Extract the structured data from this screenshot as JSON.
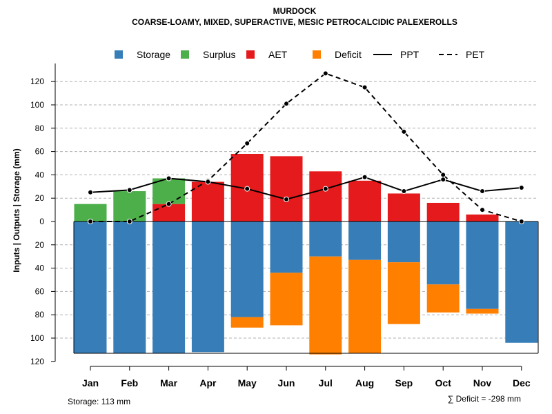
{
  "chart_data": {
    "type": "bar",
    "title": "MURDOCK",
    "subtitle": "COARSE-LOAMY, MIXED, SUPERACTIVE, MESIC PETROCALCIDIC PALEXEROLLS",
    "ylabel": "Inputs | Outputs | Storage    (mm)",
    "xlabel": "",
    "categories": [
      "Jan",
      "Feb",
      "Mar",
      "Apr",
      "May",
      "Jun",
      "Jul",
      "Aug",
      "Sep",
      "Oct",
      "Nov",
      "Dec"
    ],
    "y_ticks": [
      120,
      100,
      80,
      60,
      40,
      20,
      0,
      20,
      40,
      60,
      80,
      100,
      120
    ],
    "ylim": [
      -120,
      130
    ],
    "series": [
      {
        "name": "Storage",
        "color": "#377EB8",
        "values": [
          -113,
          -113,
          -113,
          -112,
          -82,
          -44,
          -30,
          -33,
          -35,
          -54,
          -75,
          -104
        ]
      },
      {
        "name": "Surplus",
        "color": "#4DAF4A",
        "values": [
          15,
          26,
          22,
          0,
          0,
          0,
          0,
          0,
          0,
          0,
          0,
          0
        ]
      },
      {
        "name": "AET",
        "color": "#E41A1C",
        "values": [
          0,
          0,
          15,
          34,
          58,
          56,
          43,
          35,
          24,
          16,
          6,
          0
        ]
      },
      {
        "name": "Deficit",
        "color": "#FF7F00",
        "values": [
          0,
          0,
          0,
          0,
          -9,
          -45,
          -84,
          -80,
          -53,
          -24,
          -4,
          0
        ]
      },
      {
        "name": "PPT",
        "style": "solid",
        "values": [
          25,
          27,
          37,
          34,
          28,
          19,
          28,
          38,
          26,
          36,
          26,
          29
        ]
      },
      {
        "name": "PET",
        "style": "dashed",
        "values": [
          0,
          0,
          15,
          35,
          67,
          101,
          127,
          115,
          77,
          40,
          10,
          0
        ]
      }
    ],
    "storage_note": "Storage: 113 mm",
    "deficit_note": "∑ Deficit = -298 mm"
  }
}
